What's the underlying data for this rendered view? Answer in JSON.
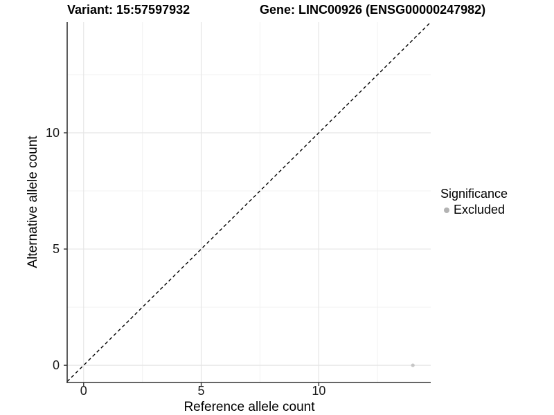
{
  "titles": {
    "variant": "Variant: 15:57597932",
    "gene": "Gene: LINC00926 (ENSG00000247982)"
  },
  "legend": {
    "title": "Significance",
    "items": [
      {
        "label": "Excluded",
        "color": "#b3b3b3"
      }
    ]
  },
  "colors": {
    "background": "#ffffff",
    "axis_line": "#333333",
    "tick_mark": "#333333",
    "grid_major": "#e5e5e5",
    "grid_minor": "#f2f2f2",
    "reference_line": "#000000",
    "point_excluded": "#c6c6c6"
  },
  "chart_data": {
    "type": "scatter",
    "title": "Variant: 15:57597932 / Gene: LINC00926 (ENSG00000247982)",
    "xlabel": "Reference allele count",
    "ylabel": "Alternative allele count",
    "xlim": [
      -0.7,
      14.76
    ],
    "ylim": [
      -0.74,
      14.76
    ],
    "x_major_ticks": [
      0,
      5,
      10
    ],
    "y_major_ticks": [
      0,
      5,
      10
    ],
    "x_minor_ticks": [
      2.5,
      7.5,
      12.5
    ],
    "y_minor_ticks": [
      2.5,
      7.5,
      12.5
    ],
    "grid": true,
    "legend_position": "right",
    "reference_line": {
      "kind": "identity",
      "style": "dashed",
      "from": [
        -0.7,
        -0.7
      ],
      "to": [
        14.76,
        14.76
      ]
    },
    "series": [
      {
        "name": "Excluded",
        "color": "#c6c6c6",
        "points": [
          {
            "x": 14,
            "y": 0
          }
        ]
      }
    ]
  }
}
